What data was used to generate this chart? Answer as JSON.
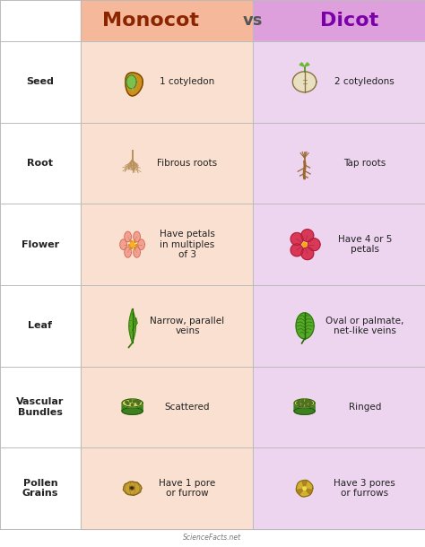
{
  "title_monocot": "Monocot",
  "title_vs": "vs",
  "title_dicot": "Dicot",
  "header_bg_monocot": "#F5B89A",
  "header_bg_dicot": "#DDA0DD",
  "row_bg_monocot": "#FAE0D0",
  "row_bg_dicot": "#EDD5F0",
  "label_col_bg": "#FFFFFF",
  "border_color": "#BBBBBB",
  "text_color_dark": "#222222",
  "header_text_color_monocot": "#8B2500",
  "header_text_color_vs": "#555555",
  "header_text_color_dicot": "#7B00AA",
  "rows": [
    {
      "label": "Seed",
      "mono_desc": "1 cotyledon",
      "di_desc": "2 cotyledons"
    },
    {
      "label": "Root",
      "mono_desc": "Fibrous roots",
      "di_desc": "Tap roots"
    },
    {
      "label": "Flower",
      "mono_desc": "Have petals\nin multiples\nof 3",
      "di_desc": "Have 4 or 5\npetals"
    },
    {
      "label": "Leaf",
      "mono_desc": "Narrow, parallel\nveins",
      "di_desc": "Oval or palmate,\nnet-like veins"
    },
    {
      "label": "Vascular\nBundles",
      "mono_desc": "Scattered",
      "di_desc": "Ringed"
    },
    {
      "label": "Pollen\nGrains",
      "mono_desc": "Have 1 pore\nor furrow",
      "di_desc": "Have 3 pores\nor furrows"
    }
  ],
  "footer_text": "ScienceFacts.net",
  "fig_width": 4.74,
  "fig_height": 6.1,
  "dpi": 100
}
